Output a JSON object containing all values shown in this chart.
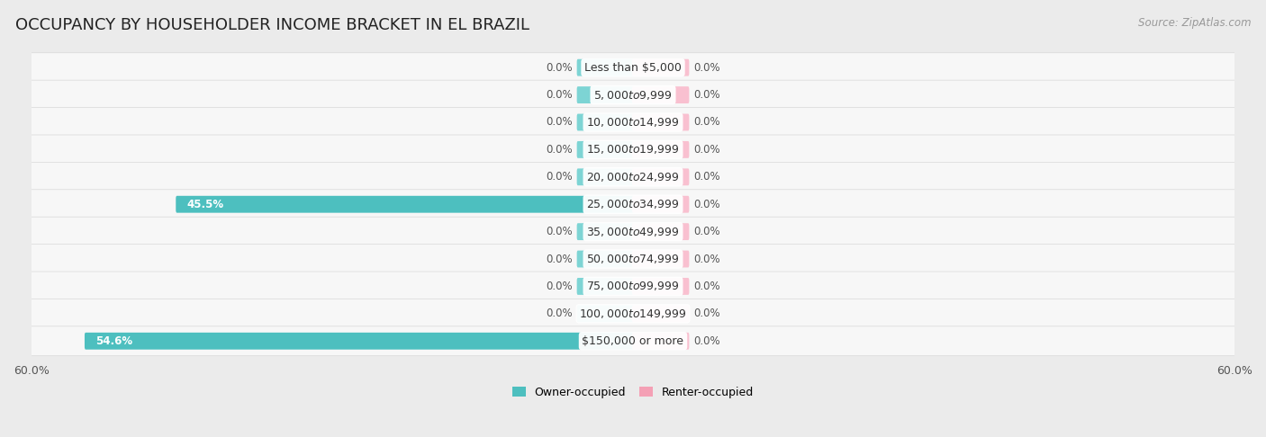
{
  "title": "OCCUPANCY BY HOUSEHOLDER INCOME BRACKET IN EL BRAZIL",
  "source": "Source: ZipAtlas.com",
  "categories": [
    "Less than $5,000",
    "$5,000 to $9,999",
    "$10,000 to $14,999",
    "$15,000 to $19,999",
    "$20,000 to $24,999",
    "$25,000 to $34,999",
    "$35,000 to $49,999",
    "$50,000 to $74,999",
    "$75,000 to $99,999",
    "$100,000 to $149,999",
    "$150,000 or more"
  ],
  "owner_values": [
    0.0,
    0.0,
    0.0,
    0.0,
    0.0,
    45.5,
    0.0,
    0.0,
    0.0,
    0.0,
    54.6
  ],
  "renter_values": [
    0.0,
    0.0,
    0.0,
    0.0,
    0.0,
    0.0,
    0.0,
    0.0,
    0.0,
    0.0,
    0.0
  ],
  "owner_color": "#4DBFBF",
  "renter_color": "#F4A0B5",
  "owner_stub_color": "#7DD4D4",
  "renter_stub_color": "#F9C0D0",
  "background_color": "#ebebeb",
  "row_bg_color": "#f7f7f7",
  "row_border_color": "#d8d8d8",
  "xlim": 60.0,
  "stub_size": 5.5,
  "title_fontsize": 13,
  "label_fontsize": 9,
  "value_fontsize": 8.5,
  "axis_fontsize": 9,
  "source_fontsize": 8.5
}
